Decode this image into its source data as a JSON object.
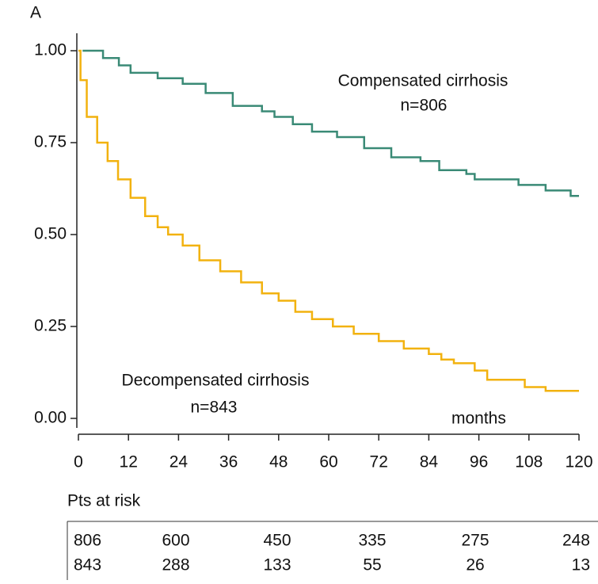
{
  "chart_data": {
    "type": "step",
    "panel_label": "A",
    "xlabel": "months",
    "xlim": [
      0,
      120
    ],
    "xticks": [
      0,
      12,
      24,
      36,
      48,
      60,
      72,
      84,
      96,
      108,
      120
    ],
    "ylim": [
      0,
      1
    ],
    "yticks": [
      {
        "value": 0,
        "label": "0.00"
      },
      {
        "value": 0.25,
        "label": "0.25"
      },
      {
        "value": 0.5,
        "label": "0.50"
      },
      {
        "value": 0.75,
        "label": "0.75"
      },
      {
        "value": 1,
        "label": "1.00"
      }
    ],
    "series": [
      {
        "name": "Compensated cirrhosis",
        "n_label": "n=806",
        "color": "#3a8a76",
        "x": [
          1,
          5.9,
          9.7,
          12.5,
          19,
          25,
          30.5,
          37,
          44,
          47,
          51.4,
          56,
          62,
          68.5,
          75,
          82,
          86.5,
          93,
          95,
          105.5,
          112,
          118,
          120
        ],
        "values": [
          1.0,
          0.98,
          0.96,
          0.94,
          0.925,
          0.91,
          0.885,
          0.85,
          0.835,
          0.82,
          0.8,
          0.78,
          0.765,
          0.735,
          0.71,
          0.7,
          0.675,
          0.665,
          0.65,
          0.635,
          0.62,
          0.605,
          0.605
        ]
      },
      {
        "name": "Decompensated cirrhosis",
        "n_label": "n=843",
        "color": "#f2b20f",
        "x": [
          0,
          0.5,
          2,
          4.5,
          7,
          9.5,
          12.5,
          16,
          19,
          21.5,
          25,
          29,
          34,
          39,
          44,
          48,
          52,
          56,
          61,
          66,
          72,
          78,
          84,
          87,
          90,
          95,
          98,
          107,
          112,
          120
        ],
        "values": [
          1.0,
          0.92,
          0.82,
          0.75,
          0.7,
          0.65,
          0.6,
          0.55,
          0.52,
          0.5,
          0.47,
          0.43,
          0.4,
          0.37,
          0.34,
          0.32,
          0.29,
          0.27,
          0.25,
          0.23,
          0.21,
          0.19,
          0.175,
          0.16,
          0.15,
          0.13,
          0.105,
          0.085,
          0.075,
          0.075
        ]
      }
    ],
    "risk_table": {
      "title": "Pts at risk",
      "rows": [
        [
          806,
          600,
          450,
          335,
          275,
          248
        ],
        [
          843,
          288,
          133,
          55,
          26,
          13
        ]
      ]
    }
  }
}
